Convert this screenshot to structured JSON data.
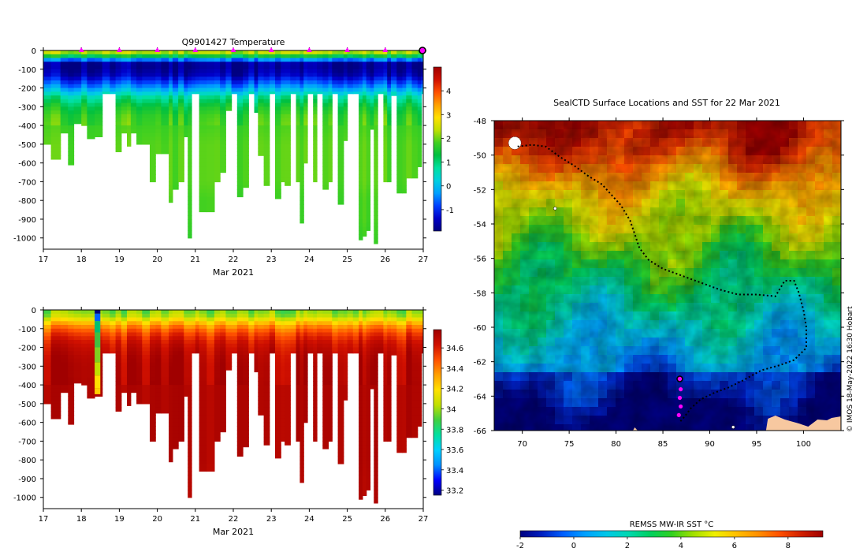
{
  "colors": {
    "temp_scale": [
      "#000080",
      "#0000c8",
      "#0040ff",
      "#00a0ff",
      "#00d0e0",
      "#00e0a0",
      "#00c040",
      "#40d020",
      "#c0e000",
      "#ffe000",
      "#ffa000",
      "#ff5000",
      "#d01000",
      "#a00000"
    ],
    "salt_scale": [
      "#000080",
      "#0000ff",
      "#0090ff",
      "#00d0ff",
      "#00e0a0",
      "#40d040",
      "#c0e000",
      "#ffe000",
      "#ffa000",
      "#ff5000",
      "#d01000",
      "#a00000"
    ],
    "sst_scale": [
      "#000080",
      "#0020c0",
      "#0060ff",
      "#00a0ff",
      "#00c8e8",
      "#00d8b0",
      "#00d060",
      "#30d020",
      "#a0e000",
      "#f0f000",
      "#ffc000",
      "#ff9000",
      "#ff5000",
      "#d02000",
      "#a00000"
    ],
    "profile_marker": "#ff00ff",
    "track": "#000000",
    "land": "#f7c8a0"
  },
  "chart_data": [
    {
      "type": "heatmap",
      "title": "Q9901427  Temperature",
      "xlabel": "Mar 2021",
      "xlim": [
        17,
        27
      ],
      "x_ticks": [
        "17",
        "18",
        "19",
        "20",
        "21",
        "22",
        "23",
        "24",
        "25",
        "26",
        "27"
      ],
      "ylim": [
        -1060,
        0
      ],
      "y_ticks": [
        "0",
        "-100",
        "-200",
        "-300",
        "-400",
        "-500",
        "-600",
        "-700",
        "-800",
        "-900",
        "-1000"
      ],
      "colorbar": {
        "range": [
          -1.9,
          5
        ],
        "ticks": [
          "4",
          "3",
          "2",
          "1",
          "0",
          "-1"
        ]
      },
      "profile_marks_day": [
        18,
        19,
        20,
        21,
        22,
        23,
        24,
        25,
        26
      ],
      "last_position_day": 27,
      "profiles": {
        "day": [
          17.0,
          17.2,
          17.45,
          17.65,
          17.8,
          18.0,
          18.15,
          18.35,
          18.55,
          18.75,
          18.9,
          19.05,
          19.2,
          19.3,
          19.45,
          19.6,
          19.8,
          19.95,
          20.1,
          20.3,
          20.4,
          20.55,
          20.7,
          20.8,
          20.9,
          21.0,
          21.1,
          21.3,
          21.5,
          21.65,
          21.8,
          21.95,
          22.1,
          22.25,
          22.4,
          22.55,
          22.65,
          22.8,
          22.95,
          23.1,
          23.25,
          23.35,
          23.5,
          23.65,
          23.75,
          23.85,
          23.95,
          24.1,
          24.2,
          24.35,
          24.5,
          24.6,
          24.75,
          24.9,
          25.0,
          25.15,
          25.3,
          25.4,
          25.5,
          25.6,
          25.7,
          25.8,
          25.95,
          26.05,
          26.15,
          26.3,
          26.45,
          26.55,
          26.7,
          26.85,
          26.95,
          27.05
        ],
        "max_depth": [
          500,
          580,
          440,
          610,
          390,
          400,
          470,
          460,
          230,
          230,
          540,
          440,
          510,
          440,
          500,
          500,
          700,
          550,
          550,
          810,
          740,
          700,
          460,
          1000,
          230,
          230,
          860,
          860,
          700,
          650,
          320,
          230,
          780,
          730,
          230,
          330,
          560,
          720,
          230,
          790,
          700,
          720,
          230,
          700,
          920,
          600,
          230,
          700,
          230,
          740,
          700,
          230,
          820,
          480,
          230,
          230,
          1010,
          990,
          960,
          420,
          1030,
          230,
          700,
          700,
          240,
          760,
          760,
          680,
          680,
          620,
          230,
          230
        ],
        "depth_grid": [
          0,
          -20,
          -40,
          -60,
          -80,
          -100,
          -130,
          -160,
          -200,
          -250,
          -300,
          -350,
          -400,
          -500,
          -600,
          -700,
          -800,
          -900,
          -1000,
          -1060
        ],
        "temp_profile": [
          2.6,
          2.0,
          0.6,
          -1.6,
          -1.8,
          -1.7,
          -1.5,
          -1.0,
          -0.3,
          0.8,
          1.4,
          1.7,
          1.8,
          1.9,
          1.9,
          1.9,
          1.8,
          1.8,
          1.7,
          1.7
        ]
      }
    },
    {
      "type": "heatmap",
      "title": "",
      "xlabel": "Mar 2021",
      "xlim": [
        17,
        27
      ],
      "x_ticks": [
        "17",
        "18",
        "19",
        "20",
        "21",
        "22",
        "23",
        "24",
        "25",
        "26",
        "27"
      ],
      "ylim": [
        -1060,
        0
      ],
      "y_ticks": [
        "0",
        "-100",
        "-200",
        "-300",
        "-400",
        "-500",
        "-600",
        "-700",
        "-800",
        "-900",
        "-1000"
      ],
      "colorbar": {
        "range": [
          33.15,
          34.78
        ],
        "ticks": [
          "34.6",
          "34.4",
          "34.2",
          "34",
          "33.8",
          "33.6",
          "33.4",
          "33.2"
        ]
      },
      "salt_profile": [
        33.95,
        33.98,
        34.05,
        34.2,
        34.32,
        34.42,
        34.52,
        34.6,
        34.66,
        34.7,
        34.72,
        34.72,
        34.73,
        34.73,
        34.73,
        34.73,
        34.73,
        34.72,
        34.72,
        34.72
      ]
    },
    {
      "type": "heatmap",
      "title": "SealCTD Surface Locations and SST for 22 Mar 2021",
      "xlabel": "",
      "ylabel": "",
      "xlim": [
        67,
        104
      ],
      "ylim": [
        -66,
        -48
      ],
      "x_ticks": [
        "70",
        "75",
        "80",
        "85",
        "90",
        "95",
        "100"
      ],
      "y_ticks": [
        "-48",
        "-50",
        "-52",
        "-54",
        "-56",
        "-58",
        "-60",
        "-62",
        "-64",
        "-66"
      ],
      "colorbar": {
        "label": "REMSS MW-IR SST °C",
        "range": [
          -2,
          9.3
        ],
        "ticks": [
          "-2",
          "0",
          "2",
          "4",
          "6",
          "8"
        ]
      },
      "track": [
        [
          69.5,
          -49.5
        ],
        [
          71,
          -49.4
        ],
        [
          72.5,
          -49.5
        ],
        [
          74,
          -50.1
        ],
        [
          75.5,
          -50.6
        ],
        [
          77,
          -51.2
        ],
        [
          78.5,
          -51.7
        ],
        [
          79.5,
          -52.3
        ],
        [
          80.5,
          -52.9
        ],
        [
          81.5,
          -53.8
        ],
        [
          82,
          -54.6
        ],
        [
          82.5,
          -55.4
        ],
        [
          83.5,
          -56.1
        ],
        [
          85,
          -56.6
        ],
        [
          86.5,
          -56.9
        ],
        [
          88,
          -57.2
        ],
        [
          89.5,
          -57.5
        ],
        [
          91,
          -57.8
        ],
        [
          93,
          -58.1
        ],
        [
          95,
          -58.1
        ],
        [
          97,
          -58.2
        ],
        [
          98,
          -57.3
        ],
        [
          99,
          -57.3
        ],
        [
          99.5,
          -58
        ],
        [
          100,
          -59
        ],
        [
          100.3,
          -60
        ],
        [
          100.3,
          -61.2
        ],
        [
          99,
          -61.9
        ],
        [
          97.5,
          -62.2
        ],
        [
          95.5,
          -62.5
        ],
        [
          93.5,
          -63.1
        ],
        [
          92,
          -63.5
        ],
        [
          90.5,
          -63.8
        ],
        [
          89,
          -64.2
        ],
        [
          88,
          -64.7
        ],
        [
          87.3,
          -65.2
        ],
        [
          86.8,
          -65.5
        ]
      ],
      "recent_profiles": [
        [
          86.9,
          -63.6
        ],
        [
          86.8,
          -64.1
        ],
        [
          86.9,
          -64.6
        ],
        [
          86.7,
          -65.1
        ]
      ],
      "last_position": [
        86.8,
        -63.0
      ]
    }
  ],
  "credit": "© IMOS 18-May-2022 16:30 Hobart"
}
